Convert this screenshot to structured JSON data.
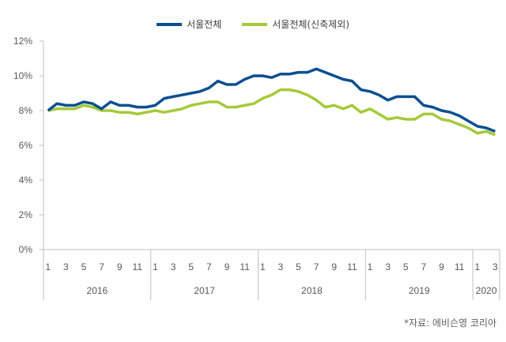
{
  "chart_data": {
    "type": "line",
    "title": "",
    "xlabel": "",
    "ylabel": "",
    "ylim": [
      0,
      12
    ],
    "yticks": [
      "0%",
      "2%",
      "4%",
      "6%",
      "8%",
      "10%",
      "12%"
    ],
    "grid": false,
    "legend": "top-center",
    "years": [
      {
        "label": "2016",
        "months": [
          "1",
          "3",
          "5",
          "7",
          "9",
          "11"
        ],
        "count": 12
      },
      {
        "label": "2017",
        "months": [
          "1",
          "3",
          "5",
          "7",
          "9",
          "11"
        ],
        "count": 12
      },
      {
        "label": "2018",
        "months": [
          "1",
          "3",
          "5",
          "7",
          "9",
          "11"
        ],
        "count": 12
      },
      {
        "label": "2019",
        "months": [
          "1",
          "3",
          "5",
          "7",
          "9",
          "11"
        ],
        "count": 12
      },
      {
        "label": "2020",
        "months": [
          "1",
          "3"
        ],
        "count": 3
      }
    ],
    "series": [
      {
        "name": "서울전체",
        "color": "#0b4f91",
        "values": [
          8.0,
          8.4,
          8.3,
          8.3,
          8.5,
          8.4,
          8.1,
          8.5,
          8.3,
          8.3,
          8.2,
          8.2,
          8.3,
          8.7,
          8.8,
          8.9,
          9.0,
          9.1,
          9.3,
          9.7,
          9.5,
          9.5,
          9.8,
          10.0,
          10.0,
          9.9,
          10.1,
          10.1,
          10.2,
          10.2,
          10.4,
          10.2,
          10.0,
          9.8,
          9.7,
          9.2,
          9.1,
          8.9,
          8.6,
          8.8,
          8.8,
          8.8,
          8.3,
          8.2,
          8.0,
          7.9,
          7.7,
          7.4,
          7.1,
          7.0,
          6.8
        ]
      },
      {
        "name": "서울전체(신축제외)",
        "color": "#a5c93a",
        "values": [
          8.0,
          8.1,
          8.1,
          8.1,
          8.3,
          8.2,
          8.0,
          8.0,
          7.9,
          7.9,
          7.8,
          7.9,
          8.0,
          7.9,
          8.0,
          8.1,
          8.3,
          8.4,
          8.5,
          8.5,
          8.2,
          8.2,
          8.3,
          8.4,
          8.7,
          8.9,
          9.2,
          9.2,
          9.1,
          8.9,
          8.6,
          8.2,
          8.3,
          8.1,
          8.3,
          7.9,
          8.1,
          7.8,
          7.5,
          7.6,
          7.5,
          7.5,
          7.8,
          7.8,
          7.5,
          7.4,
          7.2,
          7.0,
          6.7,
          6.8,
          6.6
        ]
      }
    ],
    "source": "*자료: 에비슨영 코리아"
  }
}
